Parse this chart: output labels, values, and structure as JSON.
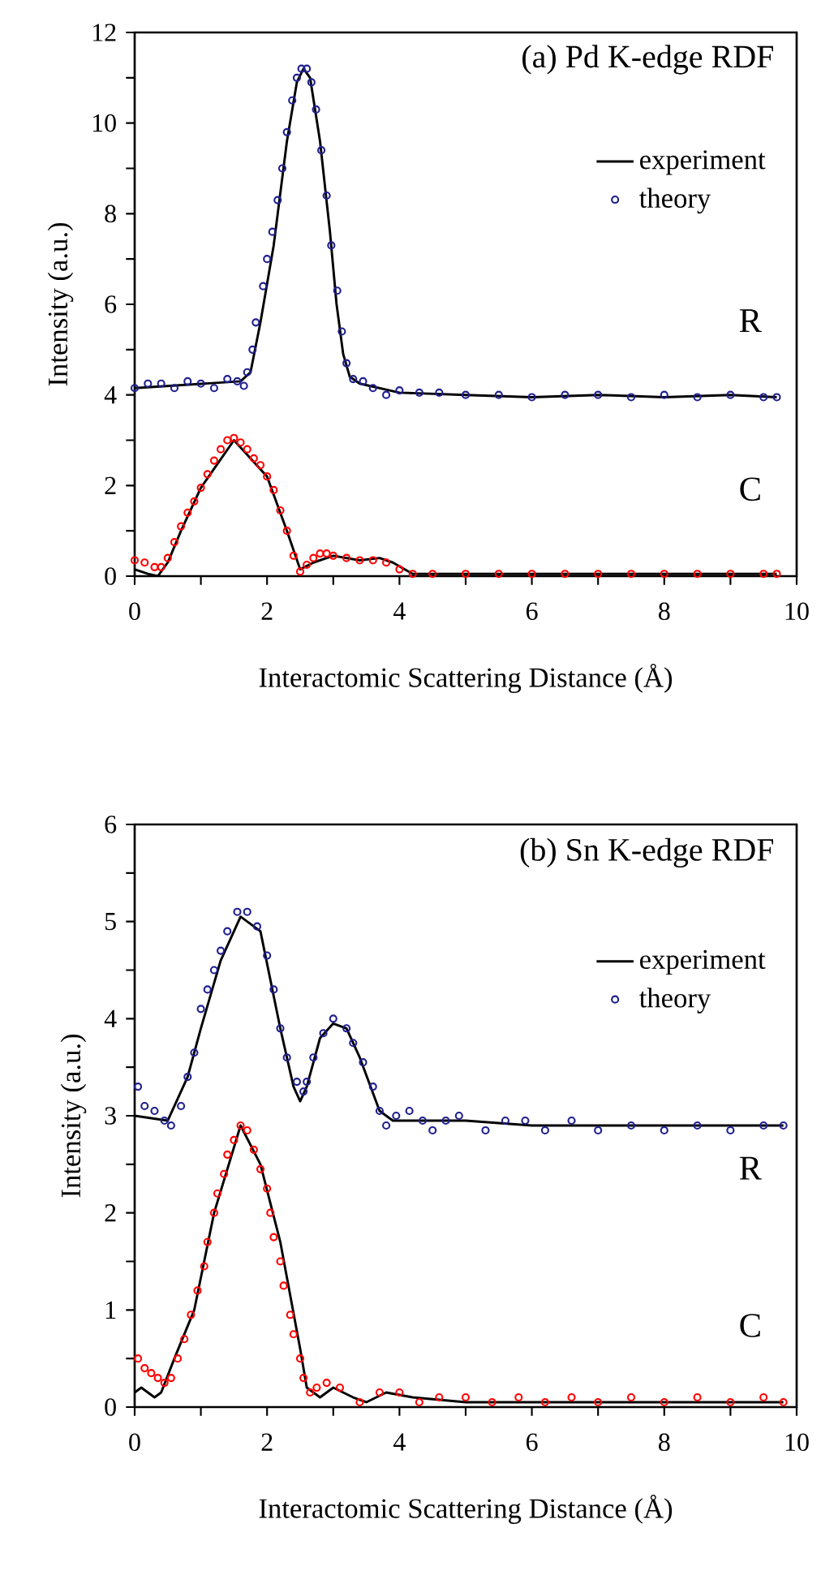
{
  "chart_data": [
    {
      "type": "line",
      "title": "(a) Pd K-edge RDF",
      "xlabel": "Interactomic Scattering Distance (Å)",
      "ylabel": "Intensity (a.u.)",
      "xlim": [
        0,
        10
      ],
      "ylim": [
        0,
        12
      ],
      "xticks": [
        0,
        {
          "value": 1,
          "label": null
        },
        2,
        {
          "value": 3,
          "label": null
        },
        4,
        {
          "value": 5,
          "label": null
        },
        6,
        {
          "value": 7,
          "label": null
        },
        8,
        {
          "value": 9,
          "label": null
        },
        10
      ],
      "yticks": [
        0,
        {
          "value": 1,
          "label": null
        },
        2,
        {
          "value": 3,
          "label": null
        },
        4,
        {
          "value": 5,
          "label": null
        },
        6,
        {
          "value": 7,
          "label": null
        },
        8,
        {
          "value": 9,
          "label": null
        },
        10,
        {
          "value": 11,
          "label": null
        },
        12
      ],
      "legend": "top right",
      "grid": false,
      "annotations": [
        "R",
        "C"
      ],
      "series": [
        {
          "name": "experiment",
          "marker": "none",
          "color": "#000000",
          "x": [
            0,
            1.6,
            1.75,
            1.9,
            2.1,
            2.3,
            2.45,
            2.55,
            2.65,
            2.8,
            2.95,
            3.05,
            3.15,
            3.25,
            3.4,
            4.0,
            5,
            6,
            7,
            8,
            9,
            9.7
          ],
          "values": [
            4.15,
            4.3,
            4.5,
            5.6,
            7.3,
            9.6,
            10.9,
            11.2,
            11.0,
            9.6,
            7.6,
            6.0,
            4.9,
            4.4,
            4.25,
            4.05,
            4.0,
            3.95,
            4.0,
            3.95,
            4.0,
            3.95
          ]
        },
        {
          "name": "theory",
          "type": "scatter",
          "marker": "circle",
          "color": "#1f1f8f",
          "x": [
            0,
            0.2,
            0.4,
            0.6,
            0.8,
            1.0,
            1.2,
            1.4,
            1.55,
            1.65,
            1.7,
            1.78,
            1.83,
            1.94,
            2.0,
            2.08,
            2.16,
            2.23,
            2.3,
            2.38,
            2.45,
            2.52,
            2.6,
            2.67,
            2.74,
            2.82,
            2.9,
            2.97,
            3.06,
            3.13,
            3.2,
            3.3,
            3.45,
            3.6,
            3.8,
            4.0,
            4.3,
            4.6,
            5.0,
            5.5,
            6.0,
            6.5,
            7.0,
            7.5,
            8.0,
            8.5,
            9.0,
            9.5,
            9.7
          ],
          "values": [
            4.15,
            4.25,
            4.25,
            4.15,
            4.3,
            4.25,
            4.15,
            4.35,
            4.3,
            4.2,
            4.5,
            5.0,
            5.6,
            6.4,
            7.0,
            7.6,
            8.3,
            9.0,
            9.8,
            10.5,
            11.0,
            11.2,
            11.2,
            10.9,
            10.3,
            9.4,
            8.4,
            7.3,
            6.3,
            5.4,
            4.7,
            4.35,
            4.3,
            4.15,
            4.0,
            4.1,
            4.05,
            4.05,
            4.0,
            4.0,
            3.95,
            4.0,
            4.0,
            3.95,
            4.0,
            3.95,
            4.0,
            3.95,
            3.95
          ]
        },
        {
          "marker": "none",
          "color": "#000000",
          "x": [
            0,
            0.2,
            0.35,
            0.5,
            0.7,
            1.0,
            1.5,
            2.0,
            2.3,
            2.5,
            2.7,
            3.0,
            3.4,
            3.7,
            3.9,
            4.2,
            4.6,
            5,
            6,
            7,
            8,
            9,
            9.7
          ],
          "values": [
            0.15,
            0.05,
            0.0,
            0.3,
            1.0,
            1.95,
            3.0,
            2.2,
            1.0,
            0.15,
            0.3,
            0.45,
            0.35,
            0.4,
            0.3,
            0.05,
            0.05,
            0.05,
            0.05,
            0.05,
            0.05,
            0.05,
            0.05
          ]
        },
        {
          "type": "scatter",
          "marker": "circle",
          "color": "#ff0000",
          "x": [
            0,
            0.15,
            0.3,
            0.4,
            0.5,
            0.6,
            0.7,
            0.8,
            0.9,
            1.0,
            1.1,
            1.2,
            1.3,
            1.4,
            1.5,
            1.6,
            1.7,
            1.8,
            1.9,
            2.0,
            2.1,
            2.2,
            2.3,
            2.4,
            2.5,
            2.6,
            2.7,
            2.8,
            2.9,
            3.0,
            3.2,
            3.4,
            3.6,
            3.8,
            4.0,
            4.2,
            4.5,
            5.0,
            5.5,
            6.0,
            6.5,
            7.0,
            7.5,
            8.0,
            8.5,
            9.0,
            9.5,
            9.7
          ],
          "values": [
            0.35,
            0.3,
            0.2,
            0.2,
            0.4,
            0.75,
            1.1,
            1.4,
            1.65,
            1.95,
            2.25,
            2.55,
            2.8,
            3.0,
            3.05,
            2.95,
            2.8,
            2.6,
            2.45,
            2.2,
            1.9,
            1.45,
            1.0,
            0.45,
            0.1,
            0.25,
            0.4,
            0.5,
            0.5,
            0.45,
            0.4,
            0.35,
            0.35,
            0.3,
            0.15,
            0.05,
            0.05,
            0.05,
            0.05,
            0.05,
            0.05,
            0.05,
            0.05,
            0.05,
            0.05,
            0.05,
            0.05,
            0.05
          ]
        }
      ]
    },
    {
      "type": "line",
      "title": "(b) Sn K-edge RDF",
      "xlabel": "Interactomic Scattering Distance (Å)",
      "ylabel": "Intensity (a.u.)",
      "xlim": [
        0,
        10
      ],
      "ylim": [
        0,
        6
      ],
      "xticks": [
        0,
        {
          "value": 1,
          "label": null
        },
        2,
        {
          "value": 3,
          "label": null
        },
        4,
        {
          "value": 5,
          "label": null
        },
        6,
        {
          "value": 7,
          "label": null
        },
        8,
        {
          "value": 9,
          "label": null
        },
        10
      ],
      "yticks": [
        0,
        {
          "value": 0.5,
          "label": null
        },
        1,
        {
          "value": 1.5,
          "label": null
        },
        2,
        {
          "value": 2.5,
          "label": null
        },
        3,
        {
          "value": 3.5,
          "label": null
        },
        4,
        {
          "value": 4.5,
          "label": null
        },
        5,
        {
          "value": 5.5,
          "label": null
        },
        6
      ],
      "legend": "top right",
      "grid": false,
      "annotations": [
        "R",
        "C"
      ],
      "series": [
        {
          "name": "experiment",
          "marker": "none",
          "color": "#000000",
          "x": [
            0,
            0.5,
            0.8,
            1.0,
            1.3,
            1.6,
            1.9,
            2.2,
            2.4,
            2.5,
            2.6,
            2.8,
            3.0,
            3.2,
            3.4,
            3.7,
            3.9,
            4.2,
            5,
            6,
            7,
            8,
            9,
            9.8
          ],
          "values": [
            3.0,
            2.95,
            3.4,
            3.9,
            4.6,
            5.05,
            4.9,
            3.9,
            3.3,
            3.15,
            3.3,
            3.8,
            3.95,
            3.9,
            3.6,
            3.05,
            2.95,
            2.95,
            2.95,
            2.9,
            2.9,
            2.9,
            2.9,
            2.9
          ]
        },
        {
          "name": "theory",
          "type": "scatter",
          "marker": "circle",
          "color": "#1f1f8f",
          "x": [
            0.05,
            0.15,
            0.3,
            0.45,
            0.55,
            0.7,
            0.8,
            0.9,
            1.0,
            1.1,
            1.2,
            1.3,
            1.4,
            1.55,
            1.7,
            1.85,
            2.0,
            2.1,
            2.2,
            2.3,
            2.45,
            2.55,
            2.6,
            2.7,
            2.85,
            3.0,
            3.2,
            3.3,
            3.45,
            3.6,
            3.7,
            3.8,
            3.95,
            4.15,
            4.35,
            4.5,
            4.7,
            4.9,
            5.3,
            5.6,
            5.9,
            6.2,
            6.6,
            7.0,
            7.5,
            8.0,
            8.5,
            9.0,
            9.5,
            9.8
          ],
          "values": [
            3.3,
            3.1,
            3.05,
            2.95,
            2.9,
            3.1,
            3.4,
            3.65,
            4.1,
            4.3,
            4.5,
            4.7,
            4.9,
            5.1,
            5.1,
            4.95,
            4.65,
            4.3,
            3.9,
            3.6,
            3.35,
            3.25,
            3.35,
            3.6,
            3.85,
            4.0,
            3.9,
            3.75,
            3.55,
            3.3,
            3.05,
            2.9,
            3.0,
            3.05,
            2.95,
            2.85,
            2.95,
            3.0,
            2.85,
            2.95,
            2.95,
            2.85,
            2.95,
            2.85,
            2.9,
            2.85,
            2.9,
            2.85,
            2.9,
            2.9
          ]
        },
        {
          "marker": "none",
          "color": "#000000",
          "x": [
            0,
            0.1,
            0.2,
            0.3,
            0.4,
            0.6,
            0.9,
            1.2,
            1.6,
            1.9,
            2.2,
            2.5,
            2.6,
            2.8,
            3.0,
            3.3,
            3.5,
            3.8,
            4.2,
            5,
            6,
            7,
            8,
            9,
            9.8
          ],
          "values": [
            0.15,
            0.2,
            0.15,
            0.1,
            0.15,
            0.5,
            1.0,
            2.0,
            2.9,
            2.5,
            1.7,
            0.6,
            0.2,
            0.1,
            0.2,
            0.1,
            0.05,
            0.15,
            0.1,
            0.05,
            0.05,
            0.05,
            0.05,
            0.05,
            0.05
          ]
        },
        {
          "type": "scatter",
          "marker": "circle",
          "color": "#ff0000",
          "x": [
            0.05,
            0.15,
            0.25,
            0.35,
            0.45,
            0.55,
            0.65,
            0.75,
            0.85,
            0.95,
            1.05,
            1.1,
            1.2,
            1.25,
            1.35,
            1.4,
            1.5,
            1.6,
            1.7,
            1.8,
            1.9,
            2.0,
            2.05,
            2.1,
            2.2,
            2.25,
            2.35,
            2.4,
            2.5,
            2.55,
            2.65,
            2.75,
            2.9,
            3.1,
            3.4,
            3.7,
            4.0,
            4.3,
            4.6,
            5.0,
            5.4,
            5.8,
            6.2,
            6.6,
            7.0,
            7.5,
            8.0,
            8.5,
            9.0,
            9.5,
            9.8
          ],
          "values": [
            0.5,
            0.4,
            0.35,
            0.3,
            0.25,
            0.3,
            0.5,
            0.7,
            0.95,
            1.2,
            1.45,
            1.7,
            2.0,
            2.2,
            2.4,
            2.6,
            2.75,
            2.9,
            2.85,
            2.65,
            2.45,
            2.25,
            2.0,
            1.75,
            1.5,
            1.25,
            0.95,
            0.75,
            0.5,
            0.3,
            0.15,
            0.2,
            0.25,
            0.2,
            0.05,
            0.15,
            0.15,
            0.05,
            0.1,
            0.1,
            0.05,
            0.1,
            0.05,
            0.1,
            0.05,
            0.1,
            0.05,
            0.1,
            0.05,
            0.1,
            0.05
          ]
        }
      ]
    }
  ]
}
